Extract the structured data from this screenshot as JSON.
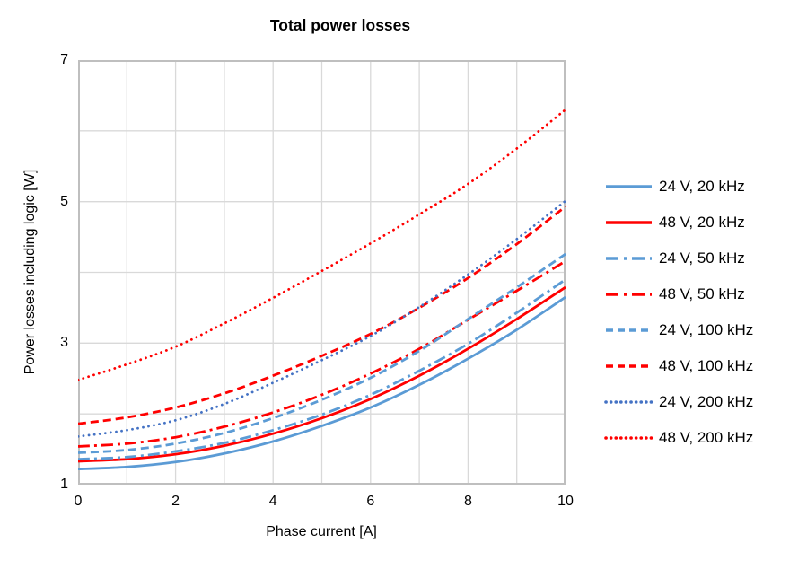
{
  "chart_data": {
    "type": "line",
    "title": "Total power losses",
    "xlabel": "Phase current [A]",
    "ylabel": "Power losses including logic [W]",
    "xlim": [
      0,
      10
    ],
    "ylim": [
      1,
      7
    ],
    "x_ticks": [
      0,
      2,
      4,
      6,
      8,
      10
    ],
    "y_ticks": [
      1,
      3,
      5,
      7
    ],
    "x_grid_step": 1,
    "y_grid_step": 1,
    "grid": true,
    "legend_position": "right",
    "x": [
      0,
      1,
      2,
      3,
      4,
      5,
      6,
      7,
      8,
      9,
      10
    ],
    "series": [
      {
        "name": "24 V, 20 kHz",
        "color": "#5B9BD5",
        "dash": "solid",
        "values": [
          1.22,
          1.25,
          1.32,
          1.44,
          1.61,
          1.83,
          2.09,
          2.41,
          2.78,
          3.19,
          3.65
        ]
      },
      {
        "name": "48 V, 20 kHz",
        "color": "#FF0000",
        "dash": "solid",
        "values": [
          1.33,
          1.36,
          1.43,
          1.55,
          1.72,
          1.94,
          2.21,
          2.54,
          2.92,
          3.34,
          3.79
        ]
      },
      {
        "name": "24 V, 50 kHz",
        "color": "#5B9BD5",
        "dash": "dash-dot",
        "values": [
          1.36,
          1.39,
          1.47,
          1.59,
          1.77,
          1.99,
          2.27,
          2.61,
          2.99,
          3.43,
          3.9
        ]
      },
      {
        "name": "48 V, 50 kHz",
        "color": "#FF0000",
        "dash": "dash-dot",
        "values": [
          1.54,
          1.58,
          1.67,
          1.82,
          2.02,
          2.27,
          2.57,
          2.92,
          3.33,
          3.74,
          4.16
        ]
      },
      {
        "name": "24 V, 100 kHz",
        "color": "#5B9BD5",
        "dash": "dash",
        "values": [
          1.45,
          1.49,
          1.58,
          1.73,
          1.94,
          2.2,
          2.51,
          2.89,
          3.34,
          3.79,
          4.26
        ]
      },
      {
        "name": "48 V, 100 kHz",
        "color": "#FF0000",
        "dash": "dash",
        "values": [
          1.86,
          1.95,
          2.09,
          2.29,
          2.54,
          2.82,
          3.13,
          3.5,
          3.92,
          4.4,
          4.93
        ]
      },
      {
        "name": "24 V, 200 kHz",
        "color": "#4472C4",
        "dash": "dot",
        "values": [
          1.68,
          1.77,
          1.91,
          2.14,
          2.44,
          2.76,
          3.1,
          3.51,
          3.97,
          4.47,
          5.01
        ]
      },
      {
        "name": "48 V, 200 kHz",
        "color": "#FF0000",
        "dash": "dot",
        "values": [
          2.48,
          2.7,
          2.95,
          3.28,
          3.64,
          4.02,
          4.41,
          4.82,
          5.25,
          5.75,
          6.3
        ]
      }
    ]
  },
  "colors": {
    "blue_24v": "#5B9BD5",
    "blue_24v_200khz": "#4472C4",
    "red_48v": "#FF0000",
    "gridline": "#D9D9D9",
    "axis_border": "#BFBFBF",
    "text": "#000000"
  }
}
